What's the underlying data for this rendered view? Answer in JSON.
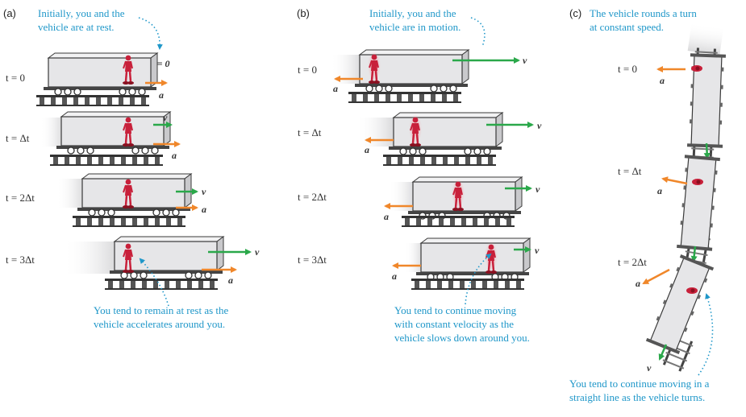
{
  "panels": [
    {
      "label": "(a)",
      "note_top": [
        "Initially, you and the",
        "vehicle are at rest."
      ],
      "v_zero": "v⃗ = 0",
      "times": [
        "t = 0",
        "t = Δt",
        "t = 2Δt",
        "t = 3Δt"
      ],
      "note_bottom": [
        "You tend to remain at rest as the",
        "vehicle accelerates around you."
      ]
    },
    {
      "label": "(b)",
      "note_top": [
        "Initially, you and the",
        "vehicle are in motion."
      ],
      "times": [
        "t = 0",
        "t = Δt",
        "t = 2Δt",
        "t = 3Δt"
      ],
      "note_bottom": [
        "You tend to continue moving",
        "with constant velocity as the",
        "vehicle slows down around you."
      ]
    },
    {
      "label": "(c)",
      "note_top": [
        "The vehicle rounds a turn",
        "at constant speed."
      ],
      "times": [
        "t = 0",
        "t = Δt",
        "t = 2Δt"
      ],
      "note_bottom": [
        "You tend to continue moving in a",
        "straight line as the vehicle turns."
      ]
    }
  ],
  "symbols": {
    "velocity": "v⃗",
    "acceleration": "a⃗"
  },
  "colors": {
    "velocity_arrow": "#2aa84a",
    "acceleration_arrow": "#f0872a",
    "note_text": "#1f97c9",
    "person": "#c8203a",
    "car_body": "#e6e6e8",
    "car_outline": "#3a3a3a"
  }
}
